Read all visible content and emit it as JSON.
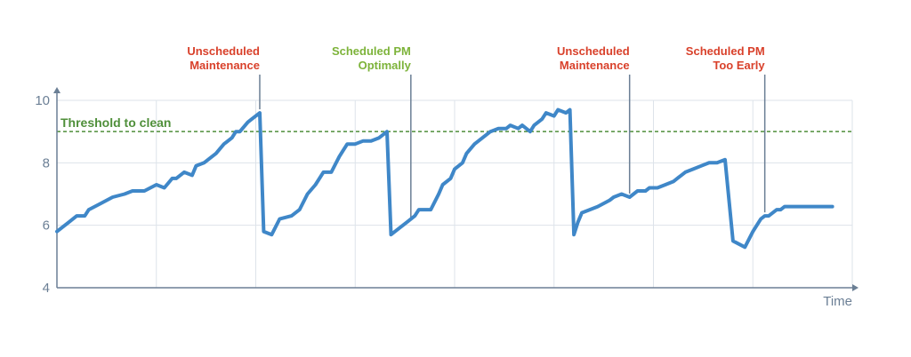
{
  "chart_data": {
    "type": "line",
    "title": "",
    "xlabel": "Time",
    "ylabel": "",
    "xlim": [
      0,
      100
    ],
    "ylim": [
      4,
      10
    ],
    "yticks": [
      4,
      6,
      8,
      10
    ],
    "ytick_labels": [
      "4",
      "6",
      "8",
      "10"
    ],
    "grid": true,
    "threshold": {
      "label": "Threshold to clean",
      "value": 9,
      "color": "#4f8f3a"
    },
    "series": [
      {
        "color": "#3f87c8",
        "x": [
          0,
          1.5,
          2.5,
          3.5,
          4.0,
          5.5,
          7.0,
          8.5,
          9.5,
          11.0,
          12.5,
          13.5,
          14.5,
          15.0,
          16.0,
          17.0,
          17.5,
          18.5,
          19.5,
          20.0,
          21.0,
          22.0,
          22.5,
          23.0,
          24.0,
          24.5,
          25.5,
          26.0,
          27.0,
          28.0,
          29.5,
          30.5,
          31.5,
          32.5,
          33.5,
          34.5,
          35.5,
          36.5,
          37.5,
          38.5,
          39.5,
          40.5,
          41.5,
          42.0,
          43.5,
          44.0,
          45.0,
          45.5,
          46.5,
          47.0,
          48.0,
          48.5,
          49.5,
          50.0,
          51.0,
          51.5,
          52.5,
          53.5,
          54.5,
          55.5,
          56.5,
          57.0,
          58.0,
          58.5,
          59.5,
          60.0,
          61.0,
          61.5,
          62.5,
          63.0,
          64.0,
          64.5,
          65.0,
          65.5,
          66.0,
          67.0,
          68.0,
          69.5,
          70.0,
          71.0,
          72.0,
          73.0,
          74.0,
          74.5,
          75.5,
          76.5,
          77.5,
          78.5,
          79.0,
          80.0,
          81.0,
          82.0,
          83.0,
          84.0,
          85.0,
          86.5,
          87.5,
          88.0,
          88.5,
          89.0,
          89.5,
          90.5,
          91.0,
          91.5,
          92.5,
          93.0,
          94.0,
          94.5,
          95.0,
          96.0,
          97.0,
          97.5
        ],
        "values": [
          5.8,
          6.1,
          6.3,
          6.3,
          6.5,
          6.7,
          6.9,
          7.0,
          7.1,
          7.1,
          7.3,
          7.2,
          7.5,
          7.5,
          7.7,
          7.6,
          7.9,
          8.0,
          8.2,
          8.3,
          8.6,
          8.8,
          9.0,
          9.0,
          9.3,
          9.4,
          9.6,
          5.8,
          5.7,
          6.2,
          6.3,
          6.5,
          7.0,
          7.3,
          7.7,
          7.7,
          8.2,
          8.6,
          8.6,
          8.7,
          8.7,
          8.8,
          9.0,
          5.7,
          6.0,
          6.1,
          6.3,
          6.5,
          6.5,
          6.5,
          7.0,
          7.3,
          7.5,
          7.8,
          8.0,
          8.3,
          8.6,
          8.8,
          9.0,
          9.1,
          9.1,
          9.2,
          9.1,
          9.2,
          9.0,
          9.2,
          9.4,
          9.6,
          9.5,
          9.7,
          9.6,
          9.7,
          5.7,
          6.1,
          6.4,
          6.5,
          6.6,
          6.8,
          6.9,
          7.0,
          6.9,
          7.1,
          7.1,
          7.2,
          7.2,
          7.3,
          7.4,
          7.6,
          7.7,
          7.8,
          7.9,
          8.0,
          8.0,
          8.1,
          5.5,
          5.3,
          5.8,
          6.0,
          6.2,
          6.3,
          6.3,
          6.5,
          6.5,
          6.6,
          6.6,
          6.6,
          6.6,
          6.6,
          6.6,
          6.6,
          6.6,
          6.6
        ]
      }
    ],
    "annotations": [
      {
        "lines": [
          "Unscheduled",
          "Maintenance"
        ],
        "color": "#d9412b",
        "x": 25.5
      },
      {
        "lines": [
          "Scheduled PM",
          "Optimally"
        ],
        "color": "#7db33a",
        "x": 44.5
      },
      {
        "lines": [
          "Unscheduled",
          "Maintenance"
        ],
        "color": "#d9412b",
        "x": 72.0
      },
      {
        "lines": [
          "Scheduled PM",
          "Too Early"
        ],
        "color": "#d9412b",
        "x": 89.0
      }
    ],
    "colors": {
      "axis": "#6b7f95",
      "grid": "#dde3ea",
      "line": "#3f87c8"
    }
  }
}
